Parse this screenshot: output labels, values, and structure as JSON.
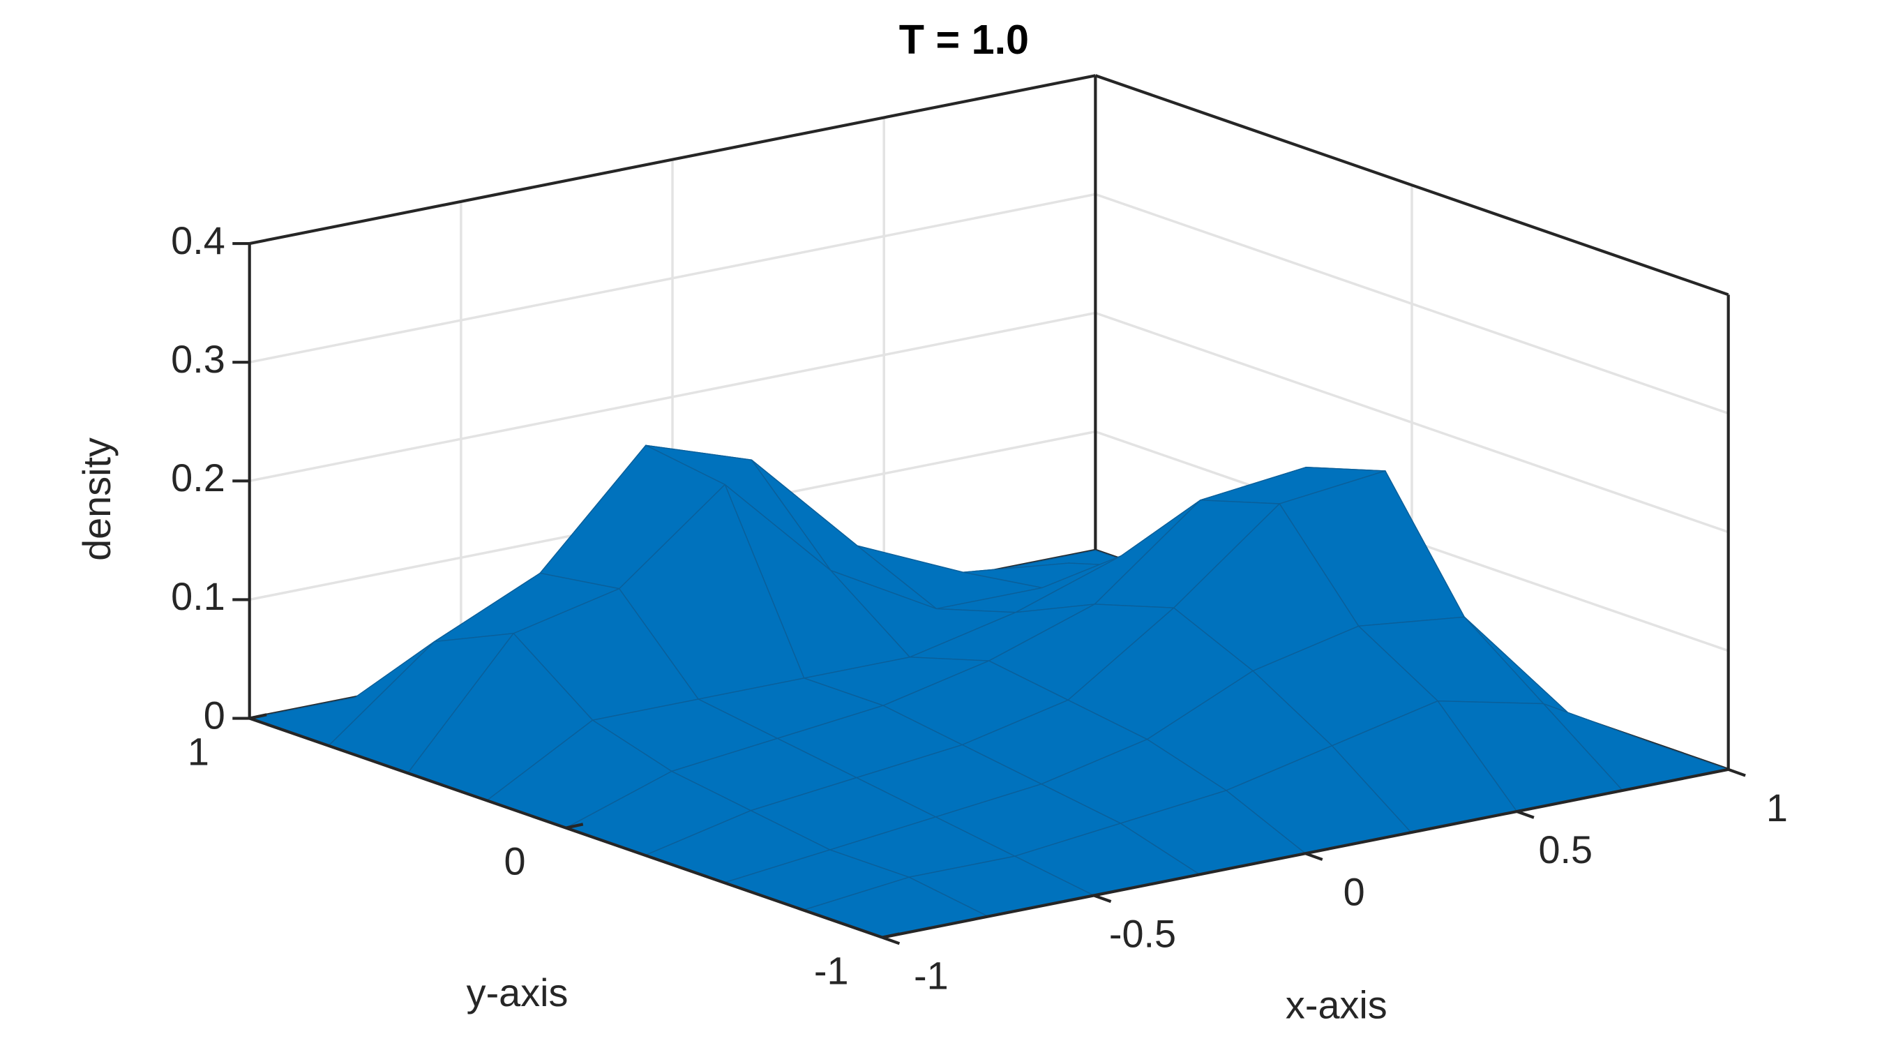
{
  "chart_data": {
    "type": "surface",
    "title": "T = 1.0",
    "xlabel": "x-axis",
    "ylabel": "y-axis",
    "zlabel": "density",
    "color": "#0072bd",
    "grid": true,
    "x": [
      -1,
      -0.75,
      -0.5,
      -0.25,
      0,
      0.25,
      0.5,
      0.75,
      1
    ],
    "y": [
      -1,
      -0.75,
      -0.5,
      -0.25,
      0,
      0.25,
      0.5,
      0.75,
      1
    ],
    "z": [
      [
        0,
        0,
        0,
        0,
        0,
        0,
        0,
        0,
        0
      ],
      [
        0,
        0.01,
        0.01,
        0.02,
        0.03,
        0.05,
        0.07,
        0.05,
        0
      ],
      [
        0,
        0.01,
        0.02,
        0.03,
        0.05,
        0.09,
        0.11,
        0.1,
        0
      ],
      [
        0,
        0.02,
        0.03,
        0.04,
        0.06,
        0.12,
        0.19,
        0.2,
        0
      ],
      [
        0,
        0.03,
        0.04,
        0.05,
        0.07,
        0.1,
        0.17,
        0.18,
        0
      ],
      [
        0,
        0.05,
        0.05,
        0.05,
        0.05,
        0.07,
        0.1,
        0.1,
        0
      ],
      [
        0,
        0.1,
        0.12,
        0.19,
        0.1,
        0.05,
        0.05,
        0.05,
        0
      ],
      [
        0,
        0.07,
        0.11,
        0.2,
        0.17,
        0.08,
        0.04,
        0.03,
        0
      ],
      [
        0,
        0,
        0,
        0,
        0,
        0,
        0,
        0,
        0
      ]
    ],
    "xlim": [
      -1,
      1
    ],
    "ylim": [
      -1,
      1
    ],
    "zlim": [
      0,
      0.4
    ],
    "xticks": [
      -1,
      -0.5,
      0,
      0.5,
      1
    ],
    "yticks": [
      -1,
      0,
      1
    ],
    "zticks": [
      0,
      0.1,
      0.2,
      0.3,
      0.4
    ]
  }
}
